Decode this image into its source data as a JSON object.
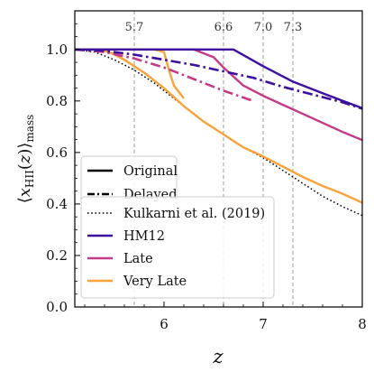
{
  "chart_data": {
    "type": "line",
    "xlabel": "z",
    "ylabel": "⟨x_HII(z)⟩_mass",
    "xlim": [
      5.1,
      8.0
    ],
    "ylim": [
      0.0,
      1.15
    ],
    "xticks": [
      6,
      7,
      8
    ],
    "xtick_labels": [
      "6",
      "7",
      "8"
    ],
    "yticks": [
      0.0,
      0.2,
      0.4,
      0.6,
      0.8,
      1.0
    ],
    "ytick_labels": [
      "0.0",
      "0.2",
      "0.4",
      "0.6",
      "0.8",
      "1.0"
    ],
    "grid": false,
    "vertical_lines": [
      {
        "x": 5.7,
        "label": "5.7"
      },
      {
        "x": 6.6,
        "label": "6.6"
      },
      {
        "x": 7.0,
        "label": "7.0"
      },
      {
        "x": 7.3,
        "label": "7.3"
      }
    ],
    "colors": {
      "kulkarni": "#000000",
      "hm12": "#3d0f9e",
      "late": "#c33b88",
      "very_late": "#f7a33a",
      "vline": "#999999"
    },
    "legend_style": {
      "location": "center-left",
      "entries": [
        {
          "label": "Original",
          "linestyle": "solid"
        },
        {
          "label": "Delayed",
          "linestyle": "dashdot"
        }
      ]
    },
    "legend_models": {
      "location": "lower-left",
      "entries": [
        {
          "label": "Kulkarni et al. (2019)",
          "color_key": "kulkarni",
          "linestyle": "dotted"
        },
        {
          "label": "HM12",
          "color_key": "hm12",
          "linestyle": "solid"
        },
        {
          "label": "Late",
          "color_key": "late",
          "linestyle": "solid"
        },
        {
          "label": "Very Late",
          "color_key": "very_late",
          "linestyle": "solid"
        }
      ]
    },
    "series": [
      {
        "name": "Kulkarni et al. (2019)",
        "color_key": "kulkarni",
        "linestyle": "dotted",
        "x": [
          5.1,
          5.3,
          5.5,
          5.7,
          5.9,
          6.0,
          6.2,
          6.4,
          6.6,
          6.8,
          7.0,
          7.2,
          7.4,
          7.6,
          7.8,
          8.0
        ],
        "y": [
          1.0,
          0.99,
          0.96,
          0.92,
          0.87,
          0.84,
          0.78,
          0.72,
          0.67,
          0.62,
          0.58,
          0.53,
          0.48,
          0.43,
          0.39,
          0.355
        ]
      },
      {
        "name": "Very Late (Delayed)",
        "color_key": "very_late",
        "linestyle": "solid",
        "x": [
          5.1,
          5.3,
          5.45,
          5.6,
          5.8,
          6.0,
          6.2,
          6.4,
          6.6,
          6.8,
          7.0,
          7.2,
          7.4,
          7.6,
          7.8,
          8.0
        ],
        "y": [
          1.0,
          1.0,
          0.99,
          0.96,
          0.91,
          0.85,
          0.78,
          0.72,
          0.67,
          0.62,
          0.585,
          0.545,
          0.505,
          0.47,
          0.44,
          0.405
        ]
      },
      {
        "name": "Very Late (Original)",
        "color_key": "very_late",
        "linestyle": "solid",
        "x": [
          5.1,
          5.9,
          6.0,
          6.05,
          6.1,
          6.2
        ],
        "y": [
          1.0,
          1.0,
          0.99,
          0.92,
          0.86,
          0.81
        ]
      },
      {
        "name": "Late (Original)",
        "color_key": "late",
        "linestyle": "solid",
        "x": [
          5.1,
          6.3,
          6.5,
          6.6,
          6.8,
          7.0,
          7.2,
          7.4,
          7.6,
          7.8,
          8.0
        ],
        "y": [
          1.0,
          1.0,
          0.97,
          0.93,
          0.86,
          0.82,
          0.785,
          0.75,
          0.715,
          0.68,
          0.648
        ]
      },
      {
        "name": "Late (Delayed)",
        "color_key": "late",
        "linestyle": "dashdot",
        "x": [
          5.1,
          5.4,
          5.7,
          6.0,
          6.3,
          6.6,
          6.9
        ],
        "y": [
          1.0,
          0.99,
          0.965,
          0.93,
          0.885,
          0.84,
          0.8
        ]
      },
      {
        "name": "HM12 (Original)",
        "color_key": "hm12",
        "linestyle": "solid",
        "x": [
          5.1,
          6.7,
          7.0,
          7.3,
          7.6,
          8.0
        ],
        "y": [
          1.0,
          1.0,
          0.935,
          0.875,
          0.83,
          0.772
        ]
      },
      {
        "name": "HM12 (Delayed)",
        "color_key": "hm12",
        "linestyle": "dashdot",
        "x": [
          5.1,
          5.4,
          5.7,
          6.0,
          6.3,
          6.6,
          6.9,
          7.2,
          7.5,
          7.8,
          8.0
        ],
        "y": [
          1.0,
          0.995,
          0.98,
          0.96,
          0.94,
          0.915,
          0.89,
          0.855,
          0.825,
          0.795,
          0.77
        ]
      }
    ]
  }
}
